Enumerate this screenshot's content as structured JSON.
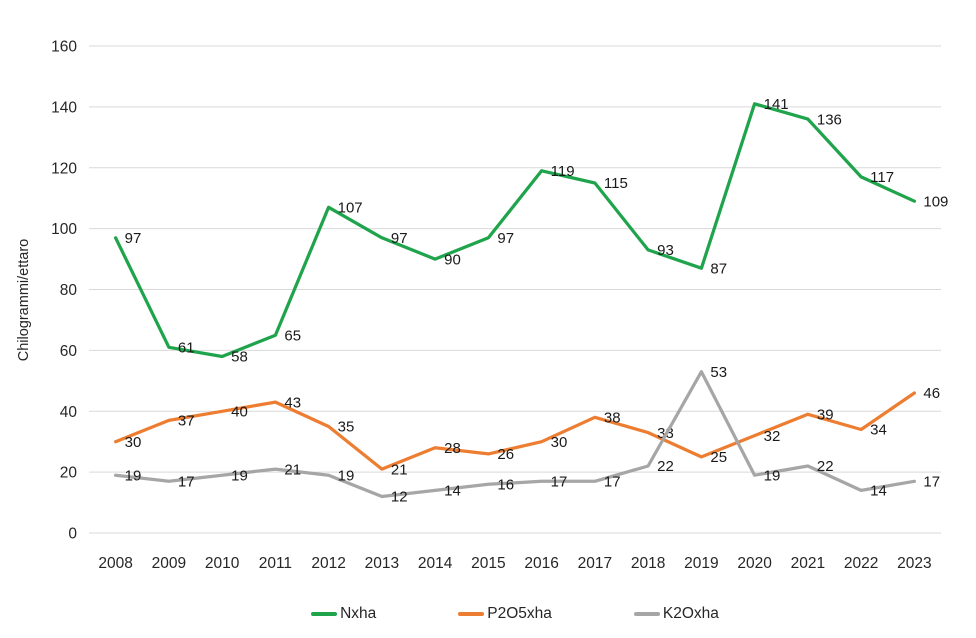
{
  "chart_data": {
    "type": "line",
    "title": "",
    "xlabel": "",
    "ylabel": "Chilogrammi/ettaro",
    "x_categories": [
      "2008",
      "2009",
      "2010",
      "2011",
      "2012",
      "2013",
      "2014",
      "2015",
      "2016",
      "2017",
      "2018",
      "2019",
      "2020",
      "2021",
      "2022",
      "2023"
    ],
    "series": [
      {
        "name": "Nxha",
        "color": "#1fa44c",
        "values": [
          97,
          61,
          58,
          65,
          107,
          97,
          90,
          97,
          119,
          115,
          93,
          87,
          141,
          136,
          117,
          109
        ]
      },
      {
        "name": "P2O5xha",
        "color": "#ed7d31",
        "values": [
          30,
          37,
          40,
          43,
          35,
          21,
          28,
          26,
          30,
          38,
          33,
          25,
          32,
          39,
          34,
          46
        ]
      },
      {
        "name": "K2Oxha",
        "color": "#a6a6a6",
        "values": [
          19,
          17,
          19,
          21,
          19,
          12,
          14,
          16,
          17,
          17,
          22,
          53,
          19,
          22,
          14,
          17
        ]
      }
    ],
    "ylim": [
      0,
      160
    ],
    "ytick_step": 20,
    "yticks": [
      "0",
      "20",
      "40",
      "60",
      "80",
      "100",
      "120",
      "140",
      "160"
    ],
    "grid": true,
    "legend_position": "bottom",
    "data_labels": "right"
  },
  "colors": {
    "background": "#ffffff",
    "gridline": "#d9d9d9",
    "axis_text": "#262626",
    "data_label_text": "#1a1a1a"
  }
}
